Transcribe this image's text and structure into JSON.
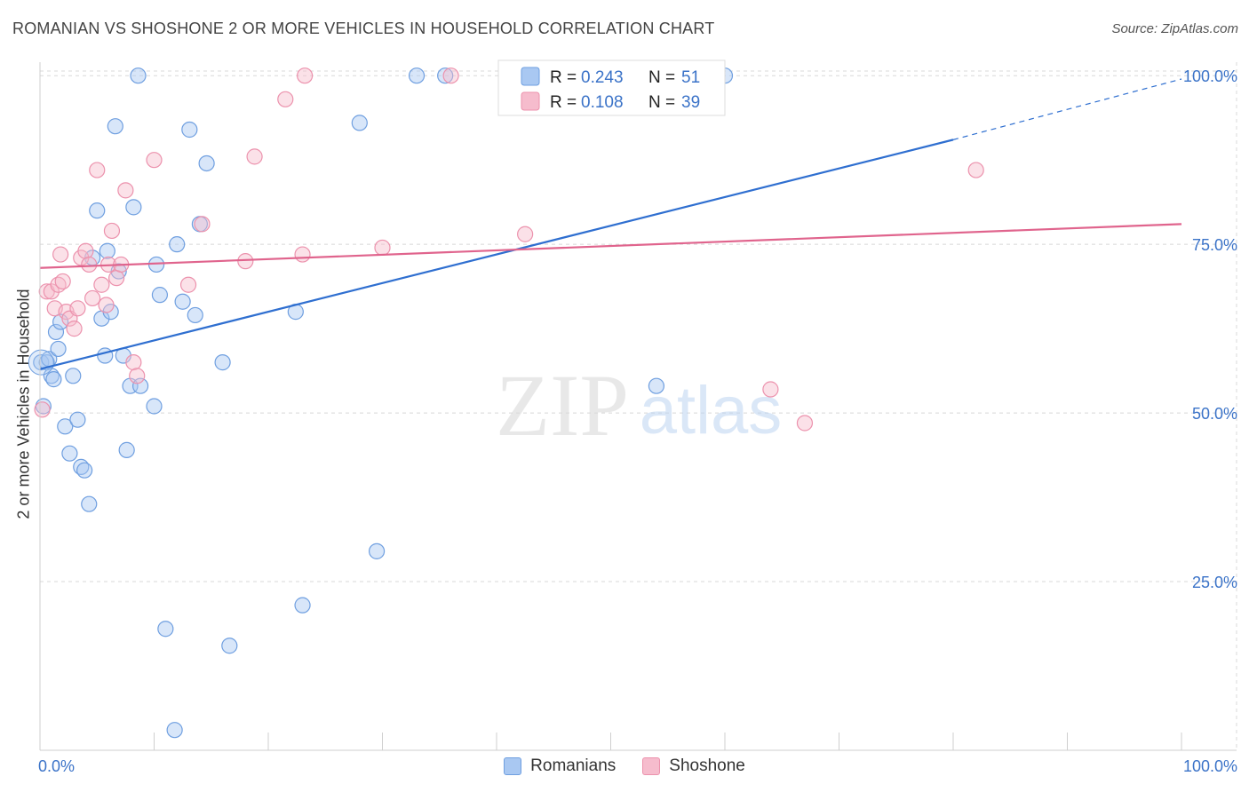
{
  "title": "ROMANIAN VS SHOSHONE 2 OR MORE VEHICLES IN HOUSEHOLD CORRELATION CHART",
  "source": "Source: ZipAtlas.com",
  "watermark": {
    "zip": "ZIP",
    "atlas": "atlas"
  },
  "colors": {
    "blue_fill": "#a9c8f2",
    "blue_stroke": "#6f9fe0",
    "blue_line": "#2f6fd0",
    "pink_fill": "#f6bccd",
    "pink_stroke": "#ec92ad",
    "pink_line": "#e0648d",
    "axis_text": "#3b73c8",
    "grid": "#d8d8d8"
  },
  "legend": {
    "r_label": "R =",
    "n_label": "N =",
    "items": [
      {
        "r": "0.243",
        "n": "51"
      },
      {
        "r": "0.108",
        "n": "39"
      }
    ]
  },
  "chart_data": {
    "type": "scatter",
    "title": "ROMANIAN VS SHOSHONE 2 OR MORE VEHICLES IN HOUSEHOLD CORRELATION CHART",
    "xlabel": "",
    "ylabel": "2 or more Vehicles in Household",
    "xlim": [
      0,
      100
    ],
    "ylim": [
      0,
      102
    ],
    "x_tick_labels": [
      "0.0%",
      "100.0%"
    ],
    "y_ticks": [
      25,
      50,
      75,
      100
    ],
    "y_tick_labels": [
      "25.0%",
      "50.0%",
      "75.0%",
      "100.0%"
    ],
    "series": [
      {
        "name": "Romanians",
        "points": [
          [
            0.1,
            57.5
          ],
          [
            0.3,
            51.0
          ],
          [
            0.6,
            57.5
          ],
          [
            0.8,
            58.0
          ],
          [
            1.0,
            55.5
          ],
          [
            1.2,
            55.0
          ],
          [
            1.4,
            62.0
          ],
          [
            1.6,
            59.5
          ],
          [
            1.8,
            63.5
          ],
          [
            2.2,
            48.0
          ],
          [
            2.6,
            44.0
          ],
          [
            2.9,
            55.5
          ],
          [
            3.3,
            49.0
          ],
          [
            3.6,
            42.0
          ],
          [
            3.9,
            41.5
          ],
          [
            4.3,
            36.5
          ],
          [
            4.6,
            73.0
          ],
          [
            5.0,
            80.0
          ],
          [
            5.4,
            64.0
          ],
          [
            5.7,
            58.5
          ],
          [
            5.9,
            74.0
          ],
          [
            6.2,
            65.0
          ],
          [
            6.6,
            92.5
          ],
          [
            6.9,
            71.0
          ],
          [
            7.3,
            58.5
          ],
          [
            7.6,
            44.5
          ],
          [
            7.9,
            54.0
          ],
          [
            8.2,
            80.5
          ],
          [
            8.6,
            100.0
          ],
          [
            8.8,
            54.0
          ],
          [
            10.0,
            51.0
          ],
          [
            10.2,
            72.0
          ],
          [
            10.5,
            67.5
          ],
          [
            11.0,
            18.0
          ],
          [
            11.8,
            3.0
          ],
          [
            12.0,
            75.0
          ],
          [
            12.5,
            66.5
          ],
          [
            13.1,
            92.0
          ],
          [
            13.6,
            64.5
          ],
          [
            14.0,
            78.0
          ],
          [
            14.6,
            87.0
          ],
          [
            16.0,
            57.5
          ],
          [
            16.6,
            15.5
          ],
          [
            22.4,
            65.0
          ],
          [
            23.0,
            21.5
          ],
          [
            28.0,
            93.0
          ],
          [
            29.5,
            29.5
          ],
          [
            33.0,
            100.0
          ],
          [
            35.5,
            100.0
          ],
          [
            54.0,
            54.0
          ],
          [
            60.0,
            100.0
          ]
        ]
      },
      {
        "name": "Shoshone",
        "points": [
          [
            0.2,
            50.5
          ],
          [
            0.6,
            68.0
          ],
          [
            1.0,
            68.0
          ],
          [
            1.3,
            65.5
          ],
          [
            1.6,
            69.0
          ],
          [
            1.8,
            73.5
          ],
          [
            2.0,
            69.5
          ],
          [
            2.3,
            65.0
          ],
          [
            2.6,
            64.0
          ],
          [
            3.0,
            62.5
          ],
          [
            3.3,
            65.5
          ],
          [
            3.6,
            73.0
          ],
          [
            4.0,
            74.0
          ],
          [
            4.3,
            72.0
          ],
          [
            4.6,
            67.0
          ],
          [
            5.0,
            86.0
          ],
          [
            5.4,
            69.0
          ],
          [
            5.8,
            66.0
          ],
          [
            6.0,
            72.0
          ],
          [
            6.3,
            77.0
          ],
          [
            6.7,
            70.0
          ],
          [
            7.1,
            72.0
          ],
          [
            7.5,
            83.0
          ],
          [
            8.2,
            57.5
          ],
          [
            8.5,
            55.5
          ],
          [
            10.0,
            87.5
          ],
          [
            13.0,
            69.0
          ],
          [
            14.2,
            78.0
          ],
          [
            18.0,
            72.5
          ],
          [
            18.8,
            88.0
          ],
          [
            21.5,
            96.5
          ],
          [
            23.0,
            73.5
          ],
          [
            23.2,
            100.0
          ],
          [
            30.0,
            74.5
          ],
          [
            36.0,
            100.0
          ],
          [
            42.5,
            76.5
          ],
          [
            64.0,
            53.5
          ],
          [
            67.0,
            48.5
          ],
          [
            82.0,
            86.0
          ]
        ]
      }
    ],
    "trendlines": [
      {
        "series": "Romanians",
        "x": [
          0,
          80
        ],
        "y": [
          56.5,
          90.5
        ],
        "dashed_extension_to": [
          100,
          99.5
        ]
      },
      {
        "series": "Shoshone",
        "x": [
          0,
          100
        ],
        "y": [
          71.5,
          78.0
        ]
      }
    ],
    "legend_position": "top-center",
    "bottom_legend": [
      "Romanians",
      "Shoshone"
    ]
  }
}
